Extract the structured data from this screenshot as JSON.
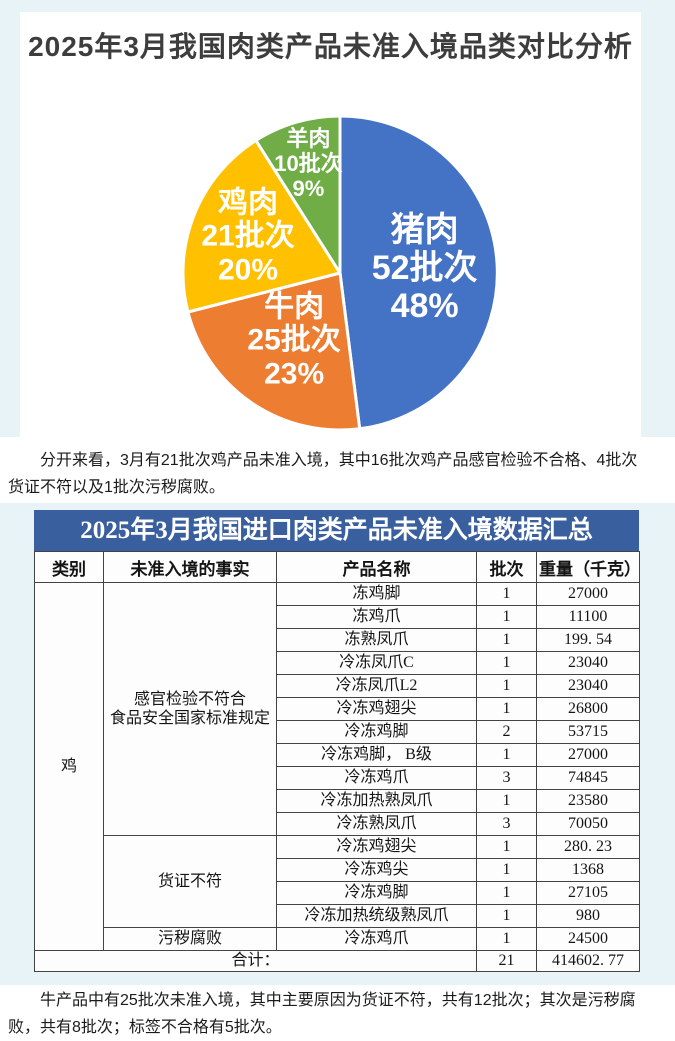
{
  "page": {
    "bg_color": "#e8f3f8",
    "accent_blue": "#3a5f9e",
    "hero_title": "2025年3月我国肉类产品未准入境品类对比分析",
    "paragraph1": "分开来看，3月有21批次鸡产品未准入境，其中16批次鸡产品感官检验不合格、4批次货证不符以及1批次污秽腐败。",
    "paragraph2": "牛产品中有25批次未准入境，其中主要原因为货证不符，共有12批次；其次是污秽腐败，共有8批次；标签不合格有5批次。"
  },
  "chart_data": {
    "type": "pie",
    "title": "2025年3月我国肉类产品未准入境品类对比分析",
    "unit": "批次",
    "start_angle_deg": 0,
    "direction": "clockwise",
    "legend_position": "none",
    "slices": [
      {
        "slug": "pork",
        "label": "猪肉",
        "batches": "52批次",
        "pct": "48%",
        "value": 52,
        "percent": 48,
        "color": "#4472C4",
        "label_r": 0.54,
        "font_px": 34
      },
      {
        "slug": "beef",
        "label": "牛肉",
        "batches": "25批次",
        "pct": "23%",
        "value": 25,
        "percent": 23,
        "color": "#ED7D31",
        "label_r": 0.52,
        "font_px": 30
      },
      {
        "slug": "chicken",
        "label": "鸡肉",
        "batches": "21批次",
        "pct": "20%",
        "value": 21,
        "percent": 20,
        "color": "#FFC000",
        "label_r": 0.63,
        "font_px": 30
      },
      {
        "slug": "mutton",
        "label": "羊肉",
        "batches": "10批次",
        "pct": "9%",
        "value": 10,
        "percent": 9,
        "color": "#70AD47",
        "label_r": 0.72,
        "font_px": 22
      }
    ]
  },
  "table": {
    "caption": "2025年3月我国进口肉类产品未准入境数据汇总",
    "caption_bg": "#3a5f9e",
    "columns": [
      "类别",
      "未准入境的事实",
      "产品名称",
      "批次",
      "重量（千克）"
    ],
    "category": "鸡",
    "groups": [
      {
        "reason": "感官检验不符合食品安全国家标准规定",
        "reason_lines": [
          "感官检验不符合",
          "食品安全国家标准规定"
        ],
        "rows": [
          [
            "冻鸡脚",
            "1",
            "27000"
          ],
          [
            "冻鸡爪",
            "1",
            "11100"
          ],
          [
            "冻熟凤爪",
            "1",
            "199. 54"
          ],
          [
            "冷冻凤爪C",
            "1",
            "23040"
          ],
          [
            "冷冻凤爪L2",
            "1",
            "23040"
          ],
          [
            "冷冻鸡翅尖",
            "1",
            "26800"
          ],
          [
            "冷冻鸡脚",
            "2",
            "53715"
          ],
          [
            "冷冻鸡脚， B级",
            "1",
            "27000"
          ],
          [
            "冷冻鸡爪",
            "3",
            "74845"
          ],
          [
            "冷冻加热熟凤爪",
            "1",
            "23580"
          ],
          [
            "冷冻熟凤爪",
            "3",
            "70050"
          ]
        ]
      },
      {
        "reason": "货证不符",
        "reason_lines": [
          "货证不符"
        ],
        "rows": [
          [
            "冷冻鸡翅尖",
            "1",
            "280. 23"
          ],
          [
            "冷冻鸡尖",
            "1",
            "1368"
          ],
          [
            "冷冻鸡脚",
            "1",
            "27105"
          ],
          [
            "冷冻加热统级熟凤爪",
            "1",
            "980"
          ]
        ]
      },
      {
        "reason": "污秽腐败",
        "reason_lines": [
          "污秽腐败"
        ],
        "rows": [
          [
            "冷冻鸡爪",
            "1",
            "24500"
          ]
        ]
      }
    ],
    "total": {
      "label": "合计：",
      "batches": "21",
      "weight": "414602. 77"
    }
  }
}
